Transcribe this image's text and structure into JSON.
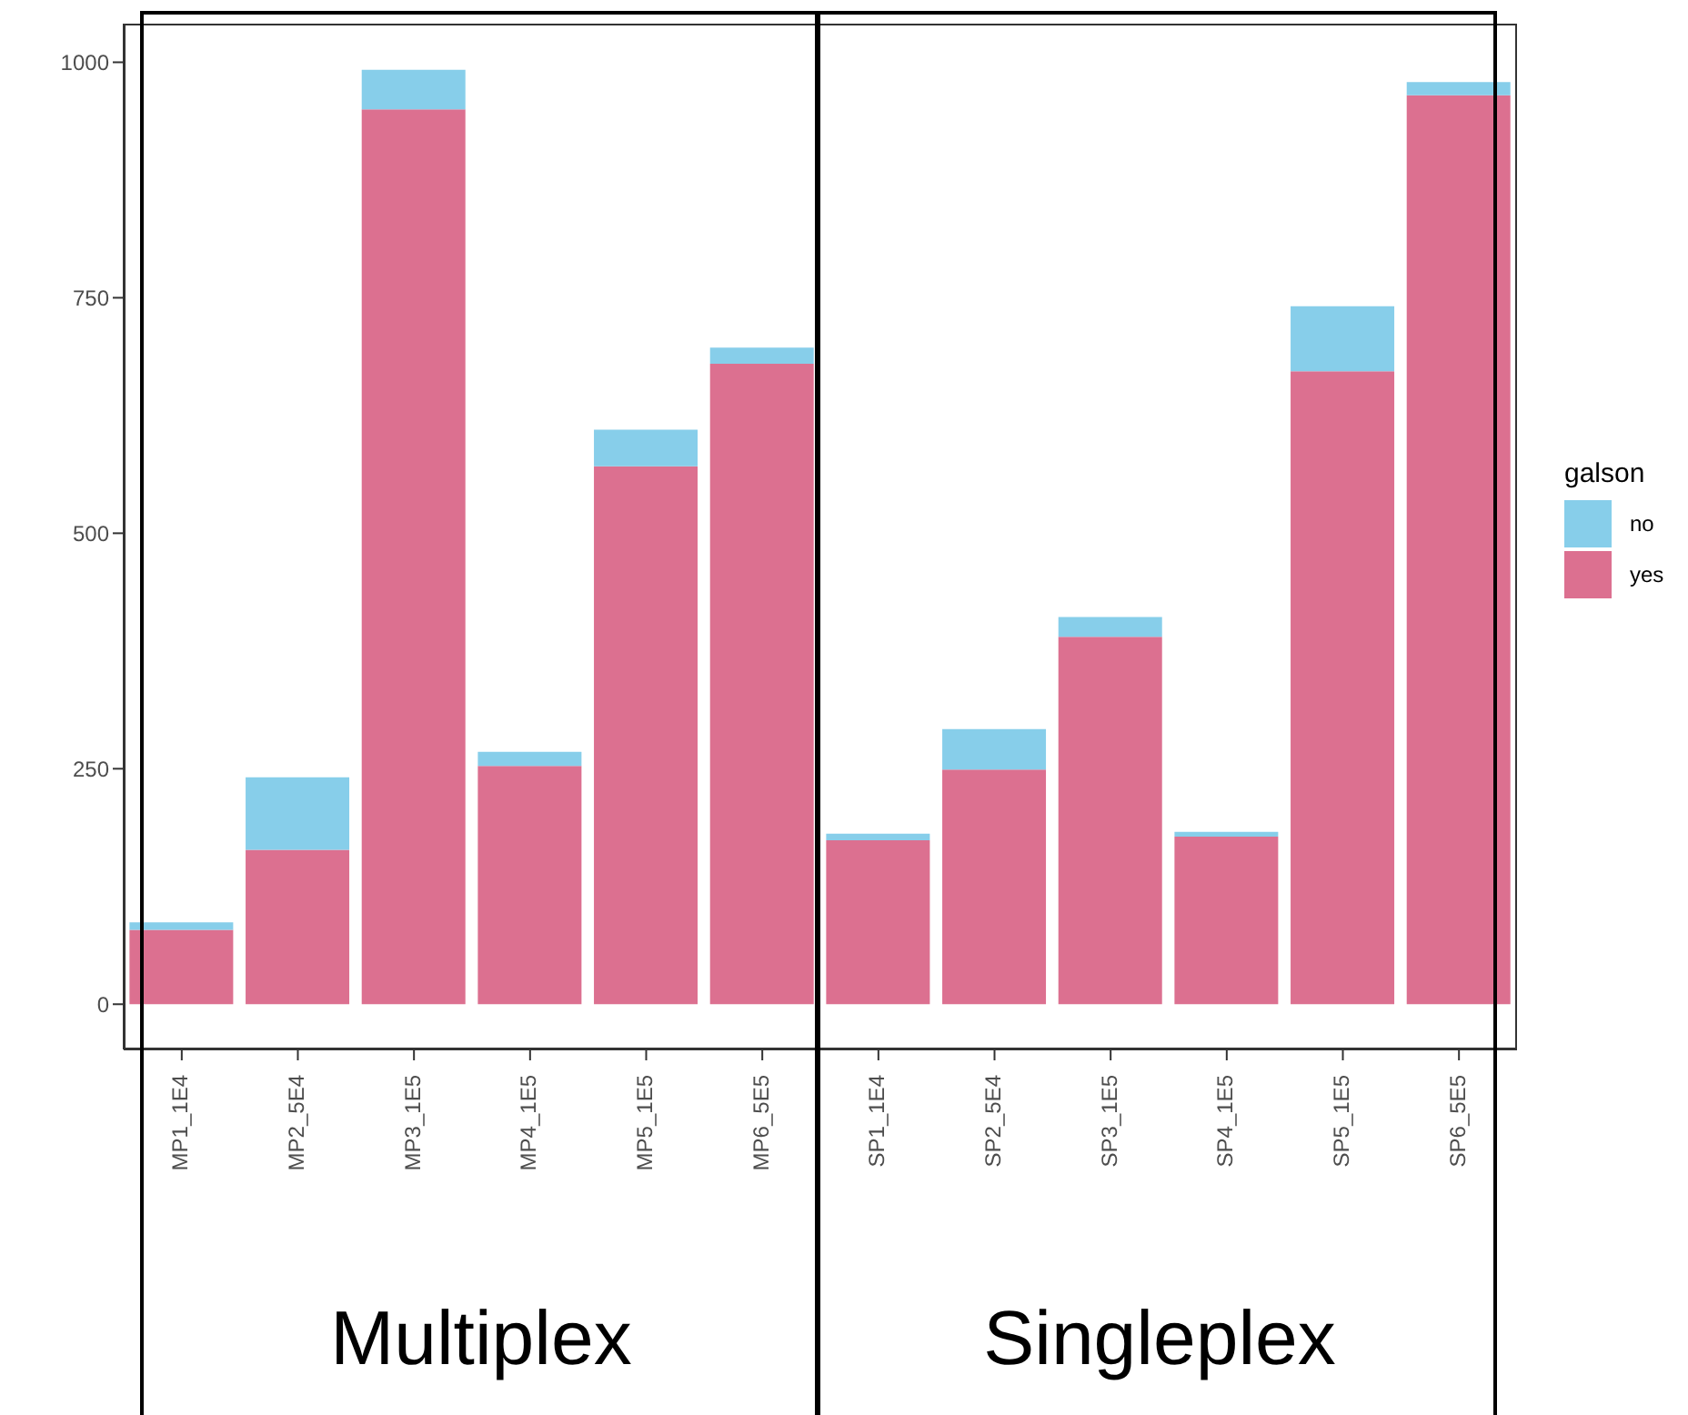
{
  "chart_data": {
    "type": "bar",
    "stacked": true,
    "categories": [
      "MP1_1E4",
      "MP2_5E4",
      "MP3_1E5",
      "MP4_1E5",
      "MP5_1E5",
      "MP6_5E5",
      "SP1_1E4",
      "SP2_5E4",
      "SP3_1E5",
      "SP4_1E5",
      "SP5_1E5",
      "SP6_5E5"
    ],
    "series": [
      {
        "name": "yes",
        "color": "#dc7090",
        "values": [
          79,
          164,
          950,
          253,
          571,
          680,
          174,
          249,
          390,
          178,
          672,
          965
        ]
      },
      {
        "name": "no",
        "color": "#87ceea",
        "values": [
          8,
          77,
          42,
          15,
          39,
          17,
          7,
          43,
          21,
          5,
          69,
          14
        ]
      }
    ],
    "ylim": [
      -48,
      1041
    ],
    "yticks": [
      0,
      250,
      500,
      750,
      1000
    ],
    "grid": false,
    "legend": "right",
    "legend_title": "galson",
    "annotations": [
      "Multiplex",
      "Singleplex"
    ]
  }
}
